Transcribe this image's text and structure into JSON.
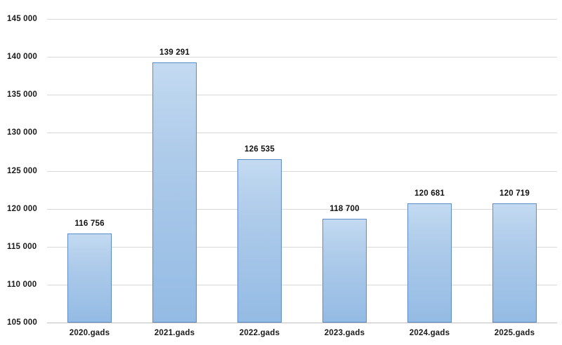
{
  "chart_data": {
    "type": "bar",
    "title": "",
    "xlabel": "",
    "ylabel": "",
    "categories": [
      "2020.gads",
      "2021.gads",
      "2022.gads",
      "2023.gads",
      "2024.gads",
      "2025.gads"
    ],
    "values": [
      116756,
      139291,
      126535,
      118700,
      120681,
      120719
    ],
    "value_labels": [
      "116 756",
      "139 291",
      "126 535",
      "118 700",
      "120 681",
      "120 719"
    ],
    "ylim": [
      105000,
      145000
    ],
    "ytick_step": 5000,
    "ytick_labels": [
      "105 000",
      "110 000",
      "115 000",
      "120 000",
      "125 000",
      "130 000",
      "135 000",
      "140 000",
      "145 000"
    ],
    "grid": true,
    "legend": "none",
    "colors": {
      "bar_fill_top": "#c3daf1",
      "bar_fill_bottom": "#94bbe4",
      "bar_border": "#5b8cc8",
      "gridline": "#d9d9d9",
      "axis_baseline": "#c0c0c0",
      "label_text": "#1a1a1a"
    }
  }
}
